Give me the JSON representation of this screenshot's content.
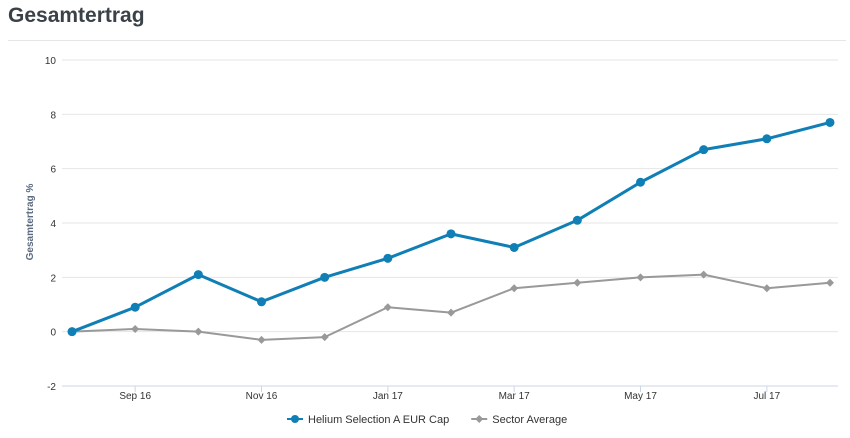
{
  "page": {
    "title": "Gesamtertrag"
  },
  "chart_data": {
    "type": "line",
    "title": "",
    "xlabel": "",
    "ylabel": "Gesamtertrag %",
    "ylim": [
      -2,
      10
    ],
    "yticks": [
      "-2",
      "0",
      "2",
      "4",
      "6",
      "8",
      "10"
    ],
    "x": [
      "Aug 16",
      "Sep 16",
      "Oct 16",
      "Nov 16",
      "Dec 16",
      "Jan 17",
      "Feb 17",
      "Mar 17",
      "Apr 17",
      "May 17",
      "Jun 17",
      "Jul 17",
      "Aug 17"
    ],
    "xtick_labels": [
      "Sep 16",
      "Nov 16",
      "Jan 17",
      "Mar 17",
      "May 17",
      "Jul 17"
    ],
    "grid": true,
    "legend_position": "bottom",
    "series": [
      {
        "name": "Helium Selection A EUR Cap",
        "color": "#0f7fb5",
        "marker": "circle",
        "values": [
          0.0,
          0.9,
          2.1,
          1.1,
          2.0,
          2.7,
          3.6,
          3.1,
          4.1,
          5.5,
          6.7,
          7.1,
          7.7
        ]
      },
      {
        "name": "Sector Average",
        "color": "#999999",
        "marker": "diamond",
        "values": [
          0.0,
          0.1,
          0.0,
          -0.3,
          -0.2,
          0.9,
          0.7,
          1.6,
          1.8,
          2.0,
          2.1,
          1.6,
          1.8
        ]
      }
    ]
  }
}
